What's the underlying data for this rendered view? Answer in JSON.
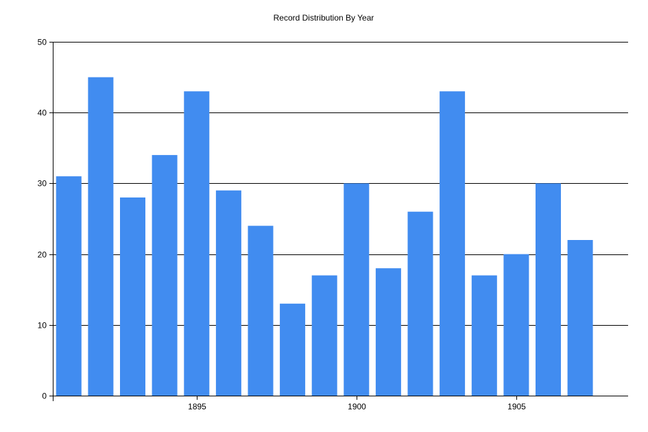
{
  "chart_data": {
    "type": "bar",
    "title": "Record Distribution By Year",
    "xlabel": "",
    "ylabel": "",
    "x": [
      1891,
      1892,
      1893,
      1894,
      1895,
      1896,
      1897,
      1898,
      1899,
      1900,
      1901,
      1902,
      1903,
      1904,
      1905,
      1906,
      1907
    ],
    "values": [
      31,
      45,
      28,
      34,
      43,
      29,
      24,
      13,
      17,
      30,
      18,
      26,
      43,
      17,
      20,
      30,
      22
    ],
    "ylim": [
      0,
      50
    ],
    "yticks": [
      0,
      10,
      20,
      30,
      40,
      50
    ],
    "xticks": [
      1895,
      1900,
      1905
    ],
    "xlim": [
      1890.5,
      1908.5
    ],
    "grid": true,
    "legend": "none",
    "bar_color": "#418CF0",
    "grid_color": "#000000"
  }
}
